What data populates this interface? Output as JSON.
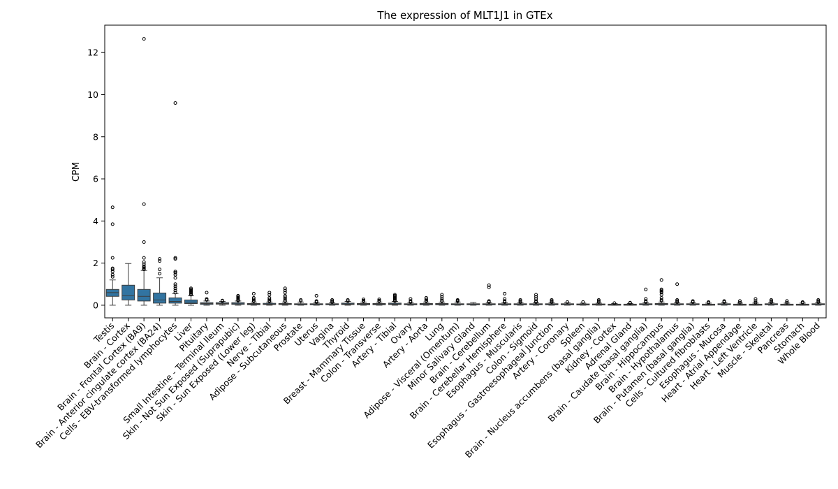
{
  "chart_data": {
    "type": "box",
    "title": "The expression of MLT1J1 in GTEx",
    "xlabel": "",
    "ylabel": "CPM",
    "ylim": [
      -0.6,
      13.3
    ],
    "yticks": [
      0,
      2,
      4,
      6,
      8,
      10,
      12
    ],
    "grid": false,
    "box_color": "#3274a1",
    "categories": [
      "Testis",
      "Brain - Cortex",
      "Brain - Frontal Cortex (BA9)",
      "Brain - Anterior cingulate cortex (BA24)",
      "Cells - EBV-transformed lymphocytes",
      "Liver",
      "Pituitary",
      "Small Intestine - Terminal Ileum",
      "Skin - Not Sun Exposed (Suprapubic)",
      "Skin - Sun Exposed (Lower leg)",
      "Nerve - Tibial",
      "Adipose - Subcutaneous",
      "Prostate",
      "Uterus",
      "Vagina",
      "Thyroid",
      "Breast - Mammary Tissue",
      "Colon - Transverse",
      "Artery - Tibial",
      "Ovary",
      "Artery - Aorta",
      "Lung",
      "Adipose - Visceral (Omentum)",
      "Minor Salivary Gland",
      "Brain - Cerebellum",
      "Brain - Cerebellar Hemisphere",
      "Esophagus - Muscularis",
      "Colon - Sigmoid",
      "Esophagus - Gastroesophageal Junction",
      "Artery - Coronary",
      "Spleen",
      "Brain - Nucleus accumbens (basal ganglia)",
      "Kidney - Cortex",
      "Adrenal Gland",
      "Brain - Caudate (basal ganglia)",
      "Brain - Hippocampus",
      "Brain - Hypothalamus",
      "Brain - Putamen (basal ganglia)",
      "Cells - Cultured fibroblasts",
      "Esophagus - Mucosa",
      "Heart - Atrial Appendage",
      "Heart - Left Ventricle",
      "Muscle - Skeletal",
      "Pancreas",
      "Stomach",
      "Whole Blood"
    ],
    "boxes": [
      {
        "whislo": 0.0,
        "q1": 0.42,
        "med": 0.6,
        "q3": 0.75,
        "whishi": 1.2,
        "fliers": [
          1.35,
          1.45,
          1.6,
          1.7,
          1.75,
          2.25,
          3.85,
          4.65
        ]
      },
      {
        "whislo": 0.0,
        "q1": 0.25,
        "med": 0.45,
        "q3": 0.95,
        "whishi": 1.98,
        "fliers": []
      },
      {
        "whislo": 0.0,
        "q1": 0.2,
        "med": 0.42,
        "q3": 0.75,
        "whishi": 1.65,
        "fliers": [
          1.7,
          1.75,
          1.8,
          1.85,
          1.95,
          2.05,
          2.25,
          3.0,
          4.8,
          12.65
        ]
      },
      {
        "whislo": 0.0,
        "q1": 0.1,
        "med": 0.25,
        "q3": 0.58,
        "whishi": 1.3,
        "fliers": [
          1.5,
          1.7,
          2.1,
          2.2
        ]
      },
      {
        "whislo": 0.0,
        "q1": 0.1,
        "med": 0.18,
        "q3": 0.35,
        "whishi": 0.55,
        "fliers": [
          0.6,
          0.7,
          0.8,
          0.9,
          1.0,
          1.3,
          1.45,
          1.55,
          1.6,
          2.2,
          2.25,
          9.6
        ]
      },
      {
        "whislo": 0.0,
        "q1": 0.08,
        "med": 0.15,
        "q3": 0.25,
        "whishi": 0.45,
        "fliers": [
          0.5,
          0.55,
          0.6,
          0.65,
          0.7,
          0.75,
          0.8
        ]
      },
      {
        "whislo": 0.0,
        "q1": 0.04,
        "med": 0.08,
        "q3": 0.12,
        "whishi": 0.2,
        "fliers": [
          0.25,
          0.3,
          0.6
        ]
      },
      {
        "whislo": 0.0,
        "q1": 0.05,
        "med": 0.08,
        "q3": 0.12,
        "whishi": 0.18,
        "fliers": [
          0.2,
          0.22
        ]
      },
      {
        "whislo": 0.0,
        "q1": 0.04,
        "med": 0.07,
        "q3": 0.12,
        "whishi": 0.2,
        "fliers": [
          0.22,
          0.25,
          0.3,
          0.35,
          0.4,
          0.45
        ]
      },
      {
        "whislo": 0.0,
        "q1": 0.02,
        "med": 0.05,
        "q3": 0.08,
        "whishi": 0.15,
        "fliers": [
          0.18,
          0.22,
          0.28,
          0.35,
          0.55
        ]
      },
      {
        "whislo": 0.0,
        "q1": 0.03,
        "med": 0.05,
        "q3": 0.09,
        "whishi": 0.15,
        "fliers": [
          0.18,
          0.22,
          0.28,
          0.35,
          0.5,
          0.6
        ]
      },
      {
        "whislo": 0.0,
        "q1": 0.03,
        "med": 0.05,
        "q3": 0.08,
        "whishi": 0.15,
        "fliers": [
          0.18,
          0.22,
          0.3,
          0.38,
          0.45,
          0.6,
          0.7,
          0.8
        ]
      },
      {
        "whislo": 0.0,
        "q1": 0.02,
        "med": 0.04,
        "q3": 0.07,
        "whishi": 0.15,
        "fliers": [
          0.2,
          0.25
        ]
      },
      {
        "whislo": 0.0,
        "q1": 0.02,
        "med": 0.04,
        "q3": 0.07,
        "whishi": 0.12,
        "fliers": [
          0.15,
          0.2,
          0.45
        ]
      },
      {
        "whislo": 0.0,
        "q1": 0.02,
        "med": 0.04,
        "q3": 0.07,
        "whishi": 0.12,
        "fliers": [
          0.15,
          0.2,
          0.25
        ]
      },
      {
        "whislo": 0.0,
        "q1": 0.03,
        "med": 0.06,
        "q3": 0.1,
        "whishi": 0.18,
        "fliers": [
          0.2,
          0.25
        ]
      },
      {
        "whislo": 0.0,
        "q1": 0.02,
        "med": 0.05,
        "q3": 0.08,
        "whishi": 0.15,
        "fliers": [
          0.18,
          0.22,
          0.28
        ]
      },
      {
        "whislo": 0.0,
        "q1": 0.02,
        "med": 0.05,
        "q3": 0.08,
        "whishi": 0.15,
        "fliers": [
          0.18,
          0.22,
          0.28
        ]
      },
      {
        "whislo": 0.0,
        "q1": 0.03,
        "med": 0.06,
        "q3": 0.1,
        "whishi": 0.18,
        "fliers": [
          0.2,
          0.25,
          0.3,
          0.35,
          0.4,
          0.45,
          0.5
        ]
      },
      {
        "whislo": 0.0,
        "q1": 0.02,
        "med": 0.04,
        "q3": 0.07,
        "whishi": 0.12,
        "fliers": [
          0.15,
          0.2,
          0.3
        ]
      },
      {
        "whislo": 0.0,
        "q1": 0.02,
        "med": 0.05,
        "q3": 0.08,
        "whishi": 0.15,
        "fliers": [
          0.18,
          0.22,
          0.28,
          0.35
        ]
      },
      {
        "whislo": 0.0,
        "q1": 0.02,
        "med": 0.05,
        "q3": 0.08,
        "whishi": 0.15,
        "fliers": [
          0.18,
          0.22,
          0.3,
          0.4,
          0.5
        ]
      },
      {
        "whislo": 0.0,
        "q1": 0.02,
        "med": 0.04,
        "q3": 0.07,
        "whishi": 0.15,
        "fliers": [
          0.18,
          0.22,
          0.25
        ]
      },
      {
        "whislo": 0.0,
        "q1": 0.02,
        "med": 0.04,
        "q3": 0.07,
        "whishi": 0.13,
        "fliers": []
      },
      {
        "whislo": 0.0,
        "q1": 0.02,
        "med": 0.04,
        "q3": 0.07,
        "whishi": 0.12,
        "fliers": [
          0.15,
          0.2,
          0.85,
          0.95
        ]
      },
      {
        "whislo": 0.0,
        "q1": 0.02,
        "med": 0.04,
        "q3": 0.07,
        "whishi": 0.12,
        "fliers": [
          0.15,
          0.2,
          0.3,
          0.55
        ]
      },
      {
        "whislo": 0.0,
        "q1": 0.02,
        "med": 0.04,
        "q3": 0.07,
        "whishi": 0.12,
        "fliers": [
          0.15,
          0.2,
          0.25
        ]
      },
      {
        "whislo": 0.0,
        "q1": 0.02,
        "med": 0.04,
        "q3": 0.07,
        "whishi": 0.12,
        "fliers": [
          0.15,
          0.2,
          0.3,
          0.4,
          0.5
        ]
      },
      {
        "whislo": 0.0,
        "q1": 0.02,
        "med": 0.04,
        "q3": 0.07,
        "whishi": 0.12,
        "fliers": [
          0.15,
          0.2,
          0.25
        ]
      },
      {
        "whislo": 0.0,
        "q1": 0.02,
        "med": 0.04,
        "q3": 0.07,
        "whishi": 0.12,
        "fliers": [
          0.15
        ]
      },
      {
        "whislo": 0.0,
        "q1": 0.02,
        "med": 0.04,
        "q3": 0.06,
        "whishi": 0.1,
        "fliers": [
          0.15
        ]
      },
      {
        "whislo": 0.0,
        "q1": 0.02,
        "med": 0.03,
        "q3": 0.06,
        "whishi": 0.1,
        "fliers": [
          0.15,
          0.2,
          0.25
        ]
      },
      {
        "whislo": 0.0,
        "q1": 0.01,
        "med": 0.03,
        "q3": 0.05,
        "whishi": 0.08,
        "fliers": [
          0.1
        ]
      },
      {
        "whislo": 0.0,
        "q1": 0.01,
        "med": 0.03,
        "q3": 0.05,
        "whishi": 0.08,
        "fliers": [
          0.1,
          0.12
        ]
      },
      {
        "whislo": 0.0,
        "q1": 0.02,
        "med": 0.04,
        "q3": 0.07,
        "whishi": 0.12,
        "fliers": [
          0.15,
          0.2,
          0.3,
          0.75
        ]
      },
      {
        "whislo": 0.0,
        "q1": 0.02,
        "med": 0.05,
        "q3": 0.08,
        "whishi": 0.15,
        "fliers": [
          0.2,
          0.25,
          0.35,
          0.5,
          0.6,
          0.65,
          0.7,
          0.75,
          1.2
        ]
      },
      {
        "whislo": 0.0,
        "q1": 0.02,
        "med": 0.04,
        "q3": 0.07,
        "whishi": 0.12,
        "fliers": [
          0.15,
          0.2,
          0.25,
          1.0
        ]
      },
      {
        "whislo": 0.0,
        "q1": 0.02,
        "med": 0.04,
        "q3": 0.07,
        "whishi": 0.12,
        "fliers": [
          0.15,
          0.2
        ]
      },
      {
        "whislo": 0.0,
        "q1": 0.01,
        "med": 0.03,
        "q3": 0.05,
        "whishi": 0.1,
        "fliers": [
          0.12,
          0.15
        ]
      },
      {
        "whislo": 0.0,
        "q1": 0.02,
        "med": 0.04,
        "q3": 0.07,
        "whishi": 0.12,
        "fliers": [
          0.15,
          0.2
        ]
      },
      {
        "whislo": 0.0,
        "q1": 0.01,
        "med": 0.03,
        "q3": 0.05,
        "whishi": 0.1,
        "fliers": [
          0.12,
          0.2
        ]
      },
      {
        "whislo": 0.0,
        "q1": 0.01,
        "med": 0.03,
        "q3": 0.05,
        "whishi": 0.1,
        "fliers": [
          0.12,
          0.2,
          0.3
        ]
      },
      {
        "whislo": 0.0,
        "q1": 0.02,
        "med": 0.04,
        "q3": 0.07,
        "whishi": 0.12,
        "fliers": [
          0.15,
          0.2,
          0.25
        ]
      },
      {
        "whislo": 0.0,
        "q1": 0.01,
        "med": 0.03,
        "q3": 0.05,
        "whishi": 0.1,
        "fliers": [
          0.12,
          0.2
        ]
      },
      {
        "whislo": 0.0,
        "q1": 0.01,
        "med": 0.03,
        "q3": 0.05,
        "whishi": 0.1,
        "fliers": [
          0.12,
          0.15
        ]
      },
      {
        "whislo": 0.0,
        "q1": 0.02,
        "med": 0.04,
        "q3": 0.07,
        "whishi": 0.12,
        "fliers": [
          0.15,
          0.2,
          0.25
        ]
      }
    ]
  }
}
